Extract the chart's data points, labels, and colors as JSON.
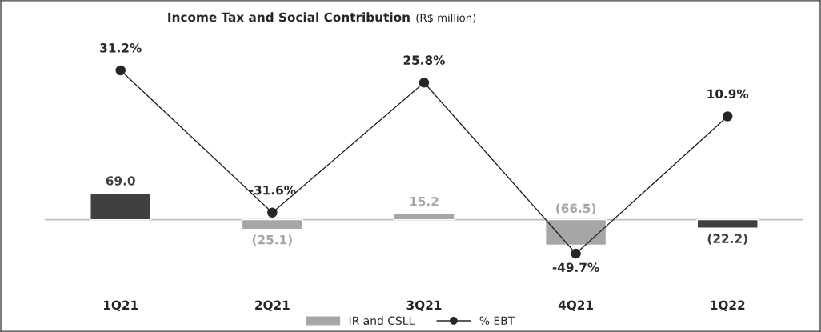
{
  "chart_data": {
    "type": "bar",
    "title": "Income Tax and Social Contribution",
    "subtitle": "(R$ million)",
    "categories": [
      "1Q21",
      "2Q21",
      "3Q21",
      "4Q21",
      "1Q22"
    ],
    "ylim": [
      -292,
      573
    ],
    "y2lim": [
      -84,
      62
    ],
    "legend": "bottom",
    "grid": false,
    "ref_lines": [
      {
        "axis": "y",
        "value": 0,
        "color": "#bfbfbf"
      }
    ],
    "series": [
      {
        "name": "IR and CSLL",
        "colors": [
          "#404040",
          "#a6a6a6",
          "#a6a6a6",
          "#a6a6a6",
          "#404040"
        ],
        "values": [
          69.0,
          -25.1,
          15.2,
          -66.5,
          -22.2
        ],
        "value_labels": [
          "69.0",
          "(25.1)",
          "15.2",
          "(66.5)",
          "(22.2)"
        ]
      },
      {
        "name": "% EBT",
        "type": "line",
        "axis": "y2",
        "color": "#262626",
        "marker": "circle",
        "line_style": "solid",
        "values": [
          31.2,
          -31.6,
          25.8,
          -49.7,
          10.9
        ],
        "value_labels": [
          "31.2%",
          "-31.6%",
          "25.8%",
          "-49.7%",
          "10.9%"
        ]
      }
    ]
  }
}
